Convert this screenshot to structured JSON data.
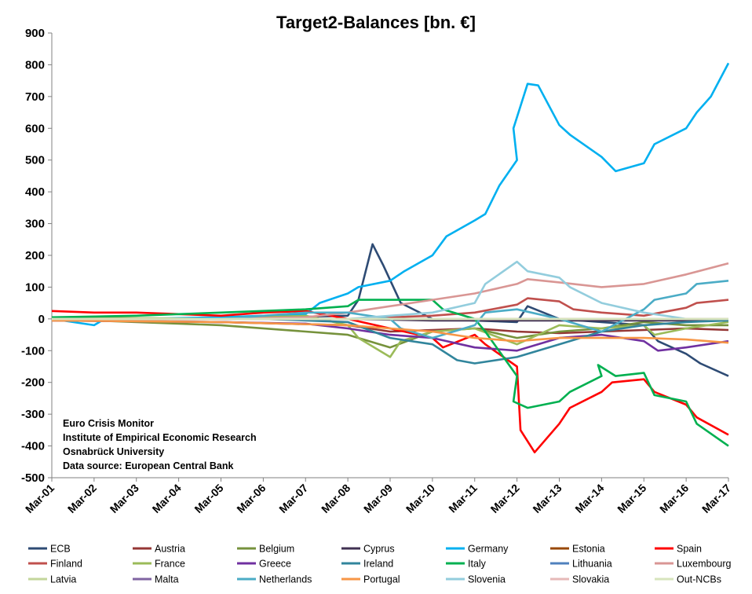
{
  "chart_data": {
    "type": "line",
    "title": "Target2-Balances [bn. €]",
    "xlabel": "",
    "ylabel": "",
    "ylim": [
      -500,
      900
    ],
    "yticks": [
      900,
      800,
      700,
      600,
      500,
      400,
      300,
      200,
      100,
      0,
      -100,
      -200,
      -300,
      -400,
      -500
    ],
    "xticks": [
      "Mar-01",
      "Mar-02",
      "Mar-03",
      "Mar-04",
      "Mar-05",
      "Mar-06",
      "Mar-07",
      "Mar-08",
      "Mar-09",
      "Mar-10",
      "Mar-11",
      "Mar-12",
      "Mar-13",
      "Mar-14",
      "Mar-15",
      "Mar-16",
      "Mar-17"
    ],
    "grid": "horizontal",
    "legend_position": "bottom",
    "annotation": [
      "Euro Crisis Monitor",
      "Institute of Empirical Economic Research",
      "Osnabrück University",
      "Data source: European Central Bank"
    ],
    "series": [
      {
        "name": "ECB",
        "color": "#2E4B74",
        "points": [
          [
            "Mar-01",
            0
          ],
          [
            "Mar-05",
            0
          ],
          [
            "Mar-08",
            10
          ],
          [
            "Mar-08-Jun",
            60
          ],
          [
            "Mar-08-Oct",
            235
          ],
          [
            "Mar-09-Jan",
            170
          ],
          [
            "Mar-09-Jun",
            50
          ],
          [
            "Mar-10",
            0
          ],
          [
            "Mar-11",
            -5
          ],
          [
            "Mar-12",
            -10
          ],
          [
            "Mar-12-Jun",
            40
          ],
          [
            "Mar-13",
            0
          ],
          [
            "Mar-14",
            -10
          ],
          [
            "Mar-15",
            -20
          ],
          [
            "Mar-15-Jul",
            -70
          ],
          [
            "Mar-16",
            -110
          ],
          [
            "Mar-16-Jul",
            -140
          ],
          [
            "Mar-17",
            -180
          ]
        ]
      },
      {
        "name": "Austria",
        "color": "#953735",
        "points": [
          [
            "Mar-01",
            -5
          ],
          [
            "Mar-05",
            -10
          ],
          [
            "Mar-08",
            -20
          ],
          [
            "Mar-09",
            -40
          ],
          [
            "Mar-10",
            -35
          ],
          [
            "Mar-11",
            -30
          ],
          [
            "Mar-12",
            -40
          ],
          [
            "Mar-13",
            -45
          ],
          [
            "Mar-14",
            -40
          ],
          [
            "Mar-15",
            -35
          ],
          [
            "Mar-16",
            -30
          ],
          [
            "Mar-17",
            -35
          ]
        ]
      },
      {
        "name": "Belgium",
        "color": "#76923C",
        "points": [
          [
            "Mar-01",
            0
          ],
          [
            "Mar-05",
            -20
          ],
          [
            "Mar-07",
            -40
          ],
          [
            "Mar-08",
            -50
          ],
          [
            "Mar-08-Jun",
            -60
          ],
          [
            "Mar-09",
            -90
          ],
          [
            "Mar-10",
            -40
          ],
          [
            "Mar-11",
            -30
          ],
          [
            "Mar-12",
            -60
          ],
          [
            "Mar-13",
            -40
          ],
          [
            "Mar-14",
            -30
          ],
          [
            "Mar-15",
            -10
          ],
          [
            "Mar-16",
            -20
          ],
          [
            "Mar-17",
            -20
          ]
        ]
      },
      {
        "name": "Cyprus",
        "color": "#403152",
        "points": [
          [
            "Mar-01",
            0
          ],
          [
            "Mar-06",
            0
          ],
          [
            "Mar-08",
            0
          ],
          [
            "Mar-10",
            -5
          ],
          [
            "Mar-12",
            -5
          ],
          [
            "Mar-14",
            -5
          ],
          [
            "Mar-17",
            -5
          ]
        ]
      },
      {
        "name": "Germany",
        "color": "#00B0F0",
        "points": [
          [
            "Mar-01",
            0
          ],
          [
            "Mar-01-Jun",
            -5
          ],
          [
            "Mar-02",
            -20
          ],
          [
            "Mar-02-Jun",
            0
          ],
          [
            "Mar-03",
            0
          ],
          [
            "Mar-05",
            5
          ],
          [
            "Mar-07",
            15
          ],
          [
            "Mar-07-Jul",
            50
          ],
          [
            "Mar-08",
            80
          ],
          [
            "Mar-08-Jun",
            100
          ],
          [
            "Mar-09",
            120
          ],
          [
            "Mar-09-Jul",
            150
          ],
          [
            "Mar-10",
            200
          ],
          [
            "Mar-10-Jul",
            260
          ],
          [
            "Mar-11",
            310
          ],
          [
            "Mar-11-Jun",
            330
          ],
          [
            "Mar-11-Oct",
            420
          ],
          [
            "Mar-12",
            500
          ],
          [
            "Mar-12-Feb",
            600
          ],
          [
            "Mar-12-Jun",
            740
          ],
          [
            "Mar-12-Sep",
            735
          ],
          [
            "Mar-13",
            610
          ],
          [
            "Mar-13-Jun",
            580
          ],
          [
            "Mar-14",
            510
          ],
          [
            "Mar-14-Jul",
            465
          ],
          [
            "Mar-15",
            490
          ],
          [
            "Mar-15-Jun",
            550
          ],
          [
            "Mar-16",
            600
          ],
          [
            "Mar-16-Jun",
            650
          ],
          [
            "Mar-16-Oct",
            700
          ],
          [
            "Mar-17",
            805
          ]
        ]
      },
      {
        "name": "Estonia",
        "color": "#984807",
        "points": [
          [
            "Mar-01",
            0
          ],
          [
            "Mar-17",
            0
          ]
        ]
      },
      {
        "name": "Spain",
        "color": "#FF0000",
        "points": [
          [
            "Mar-01",
            25
          ],
          [
            "Mar-02",
            20
          ],
          [
            "Mar-03",
            20
          ],
          [
            "Mar-04",
            15
          ],
          [
            "Mar-05",
            10
          ],
          [
            "Mar-06",
            20
          ],
          [
            "Mar-07",
            25
          ],
          [
            "Mar-08",
            0
          ],
          [
            "Mar-09",
            -30
          ],
          [
            "Mar-10",
            -60
          ],
          [
            "Mar-10-Jun",
            -90
          ],
          [
            "Mar-11",
            -50
          ],
          [
            "Mar-11-Jun",
            -80
          ],
          [
            "Mar-12",
            -150
          ],
          [
            "Mar-12-Apr",
            -350
          ],
          [
            "Mar-12-Aug",
            -420
          ],
          [
            "Mar-13",
            -330
          ],
          [
            "Mar-13-Jun",
            -280
          ],
          [
            "Mar-14",
            -230
          ],
          [
            "Mar-14-Jun",
            -200
          ],
          [
            "Mar-15",
            -190
          ],
          [
            "Mar-15-Jun",
            -230
          ],
          [
            "Mar-16",
            -270
          ],
          [
            "Mar-16-Jun",
            -310
          ],
          [
            "Mar-17",
            -365
          ]
        ]
      },
      {
        "name": "Finland",
        "color": "#C0504D",
        "points": [
          [
            "Mar-01",
            0
          ],
          [
            "Mar-06",
            0
          ],
          [
            "Mar-08",
            0
          ],
          [
            "Mar-10",
            10
          ],
          [
            "Mar-11",
            20
          ],
          [
            "Mar-12",
            45
          ],
          [
            "Mar-12-Jun",
            65
          ],
          [
            "Mar-13",
            55
          ],
          [
            "Mar-13-Jul",
            30
          ],
          [
            "Mar-14",
            20
          ],
          [
            "Mar-15",
            10
          ],
          [
            "Mar-16",
            35
          ],
          [
            "Mar-16-Jun",
            50
          ],
          [
            "Mar-17",
            60
          ]
        ]
      },
      {
        "name": "France",
        "color": "#9BBB59",
        "points": [
          [
            "Mar-01",
            5
          ],
          [
            "Mar-05",
            0
          ],
          [
            "Mar-07",
            10
          ],
          [
            "Mar-08",
            -20
          ],
          [
            "Mar-08-Jun",
            -60
          ],
          [
            "Mar-09",
            -120
          ],
          [
            "Mar-09-Jun",
            -70
          ],
          [
            "Mar-10",
            -40
          ],
          [
            "Mar-11",
            -30
          ],
          [
            "Mar-12",
            -80
          ],
          [
            "Mar-13",
            -20
          ],
          [
            "Mar-14",
            -30
          ],
          [
            "Mar-15",
            -20
          ],
          [
            "Mar-15-Jun",
            -50
          ],
          [
            "Mar-16",
            -30
          ],
          [
            "Mar-17",
            -10
          ]
        ]
      },
      {
        "name": "Greece",
        "color": "#7030A0",
        "points": [
          [
            "Mar-01",
            -5
          ],
          [
            "Mar-05",
            -10
          ],
          [
            "Mar-07",
            -15
          ],
          [
            "Mar-08",
            -30
          ],
          [
            "Mar-09",
            -50
          ],
          [
            "Mar-10",
            -60
          ],
          [
            "Mar-11",
            -90
          ],
          [
            "Mar-12",
            -100
          ],
          [
            "Mar-13",
            -60
          ],
          [
            "Mar-14",
            -50
          ],
          [
            "Mar-15",
            -70
          ],
          [
            "Mar-15-Jul",
            -100
          ],
          [
            "Mar-16",
            -90
          ],
          [
            "Mar-17",
            -70
          ]
        ]
      },
      {
        "name": "Ireland",
        "color": "#31859C",
        "points": [
          [
            "Mar-01",
            0
          ],
          [
            "Mar-06",
            0
          ],
          [
            "Mar-08",
            -10
          ],
          [
            "Mar-09",
            -60
          ],
          [
            "Mar-10",
            -80
          ],
          [
            "Mar-10-Oct",
            -130
          ],
          [
            "Mar-11",
            -140
          ],
          [
            "Mar-12",
            -120
          ],
          [
            "Mar-13",
            -80
          ],
          [
            "Mar-14",
            -40
          ],
          [
            "Mar-15",
            -20
          ],
          [
            "Mar-16",
            -10
          ],
          [
            "Mar-17",
            -5
          ]
        ]
      },
      {
        "name": "Italy",
        "color": "#00B050",
        "points": [
          [
            "Mar-01",
            5
          ],
          [
            "Mar-03",
            10
          ],
          [
            "Mar-05",
            20
          ],
          [
            "Mar-07",
            30
          ],
          [
            "Mar-08",
            40
          ],
          [
            "Mar-08-Jun",
            60
          ],
          [
            "Mar-09",
            60
          ],
          [
            "Mar-10",
            60
          ],
          [
            "Mar-10-Jun",
            30
          ],
          [
            "Mar-11",
            0
          ],
          [
            "Mar-11-Jun",
            -40
          ],
          [
            "Mar-12",
            -180
          ],
          [
            "Mar-12-Feb",
            -260
          ],
          [
            "Mar-12-Jun",
            -280
          ],
          [
            "Mar-13",
            -260
          ],
          [
            "Mar-13-Jun",
            -230
          ],
          [
            "Mar-14",
            -180
          ],
          [
            "Mar-14-Feb",
            -145
          ],
          [
            "Mar-14-Jul",
            -180
          ],
          [
            "Mar-15",
            -170
          ],
          [
            "Mar-15-Jun",
            -240
          ],
          [
            "Mar-16",
            -260
          ],
          [
            "Mar-16-Jun",
            -330
          ],
          [
            "Mar-17",
            -400
          ]
        ]
      },
      {
        "name": "Lithuania",
        "color": "#4F81BD",
        "points": [
          [
            "Mar-01",
            0
          ],
          [
            "Mar-17",
            0
          ]
        ]
      },
      {
        "name": "Luxembourg",
        "color": "#D99694",
        "points": [
          [
            "Mar-01",
            -5
          ],
          [
            "Mar-05",
            0
          ],
          [
            "Mar-07",
            5
          ],
          [
            "Mar-08",
            20
          ],
          [
            "Mar-09",
            40
          ],
          [
            "Mar-10",
            60
          ],
          [
            "Mar-11",
            80
          ],
          [
            "Mar-12",
            110
          ],
          [
            "Mar-12-Jun",
            125
          ],
          [
            "Mar-13",
            115
          ],
          [
            "Mar-14",
            100
          ],
          [
            "Mar-15",
            110
          ],
          [
            "Mar-16",
            140
          ],
          [
            "Mar-17",
            175
          ]
        ]
      },
      {
        "name": "Latvia",
        "color": "#C3D69B",
        "points": [
          [
            "Mar-01",
            0
          ],
          [
            "Mar-17",
            0
          ]
        ]
      },
      {
        "name": "Malta",
        "color": "#8064A2",
        "points": [
          [
            "Mar-01",
            0
          ],
          [
            "Mar-17",
            0
          ]
        ]
      },
      {
        "name": "Netherlands",
        "color": "#4BACC6",
        "points": [
          [
            "Mar-01",
            0
          ],
          [
            "Mar-05",
            0
          ],
          [
            "Mar-07",
            20
          ],
          [
            "Mar-08",
            20
          ],
          [
            "Mar-09",
            0
          ],
          [
            "Mar-09-Jun",
            -30
          ],
          [
            "Mar-10",
            -60
          ],
          [
            "Mar-11",
            -20
          ],
          [
            "Mar-11-Jun",
            20
          ],
          [
            "Mar-12",
            30
          ],
          [
            "Mar-13",
            0
          ],
          [
            "Mar-14",
            -40
          ],
          [
            "Mar-15",
            30
          ],
          [
            "Mar-15-Jun",
            60
          ],
          [
            "Mar-16",
            80
          ],
          [
            "Mar-16-Jun",
            110
          ],
          [
            "Mar-17",
            120
          ]
        ]
      },
      {
        "name": "Portugal",
        "color": "#F79646",
        "points": [
          [
            "Mar-01",
            -5
          ],
          [
            "Mar-05",
            -10
          ],
          [
            "Mar-08",
            -20
          ],
          [
            "Mar-09",
            -30
          ],
          [
            "Mar-10",
            -40
          ],
          [
            "Mar-11",
            -60
          ],
          [
            "Mar-12",
            -70
          ],
          [
            "Mar-13",
            -60
          ],
          [
            "Mar-14",
            -60
          ],
          [
            "Mar-15",
            -60
          ],
          [
            "Mar-16",
            -65
          ],
          [
            "Mar-17",
            -75
          ]
        ]
      },
      {
        "name": "Slovenia",
        "color": "#93CDDD",
        "points": [
          [
            "Mar-01",
            0
          ],
          [
            "Mar-08",
            0
          ],
          [
            "Mar-10",
            20
          ],
          [
            "Mar-11",
            50
          ],
          [
            "Mar-11-Jun",
            110
          ],
          [
            "Mar-12",
            180
          ],
          [
            "Mar-12-Jun",
            150
          ],
          [
            "Mar-13",
            130
          ],
          [
            "Mar-13-Jun",
            100
          ],
          [
            "Mar-14",
            50
          ],
          [
            "Mar-15",
            20
          ],
          [
            "Mar-16",
            0
          ],
          [
            "Mar-17",
            0
          ]
        ]
      },
      {
        "name": "Slovakia",
        "color": "#E6B9B8",
        "points": [
          [
            "Mar-01",
            0
          ],
          [
            "Mar-17",
            0
          ]
        ]
      },
      {
        "name": "Out-NCBs",
        "color": "#D7E4BD",
        "points": [
          [
            "Mar-01",
            0
          ],
          [
            "Mar-17",
            0
          ]
        ]
      }
    ]
  }
}
